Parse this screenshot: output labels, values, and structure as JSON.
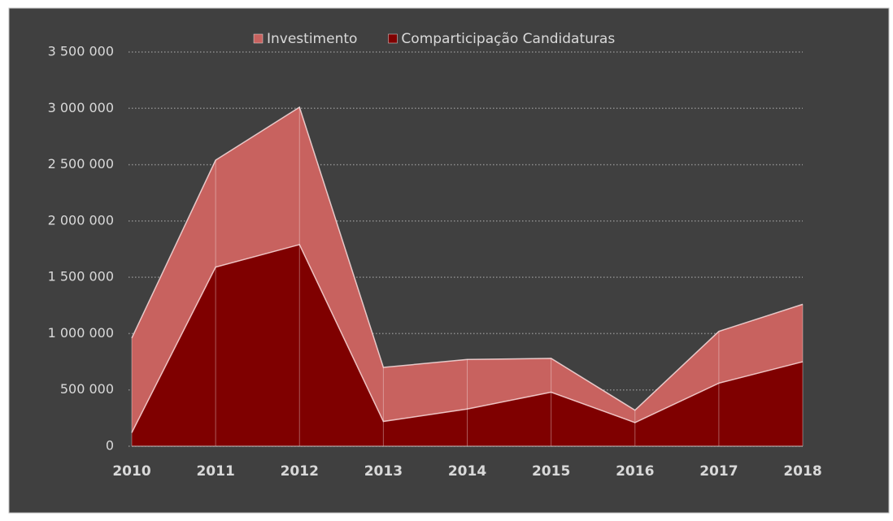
{
  "chart_data": {
    "type": "area",
    "categories": [
      "2010",
      "2011",
      "2012",
      "2013",
      "2014",
      "2015",
      "2016",
      "2017",
      "2018"
    ],
    "series": [
      {
        "name": "Investimento",
        "color": "#c8625f",
        "values": [
          960000,
          2540000,
          3010000,
          700000,
          770000,
          780000,
          320000,
          1020000,
          1260000
        ]
      },
      {
        "name": "Comparticipação Candidaturas",
        "color": "#7f0000",
        "values": [
          120000,
          1590000,
          1790000,
          220000,
          330000,
          480000,
          210000,
          560000,
          750000
        ]
      }
    ],
    "ylim": [
      0,
      3500000
    ],
    "yticks": [
      0,
      {
        "value": 500000,
        "label": "500 000"
      },
      {
        "value": 1000000,
        "label": "1 000 000"
      },
      {
        "value": 1500000,
        "label": "1 500 000"
      },
      {
        "value": 2000000,
        "label": "2 000 000"
      },
      {
        "value": 2500000,
        "label": "2 500 000"
      },
      {
        "value": 3000000,
        "label": "3 000 000"
      },
      {
        "value": 3500000,
        "label": "3 500 000"
      }
    ],
    "grid": true,
    "legend": "top"
  }
}
